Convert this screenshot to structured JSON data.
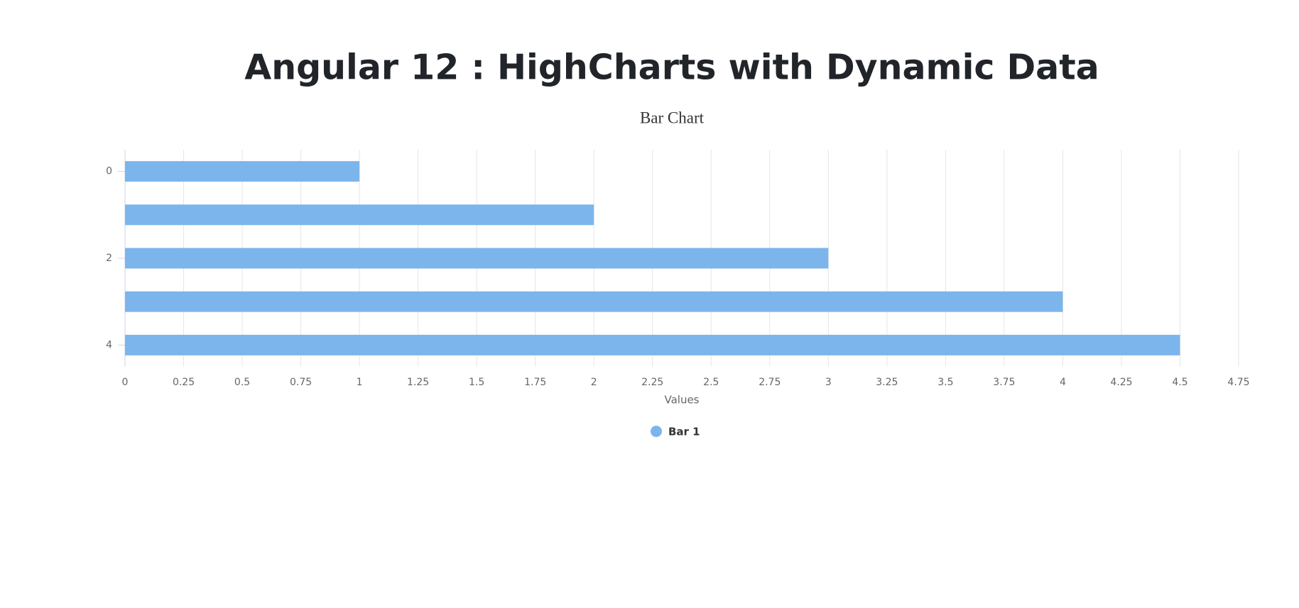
{
  "page_title": "Angular 12 : HighCharts with Dynamic Data",
  "chart_data": {
    "type": "bar",
    "title": "Bar Chart",
    "x_label": "Values",
    "categories": [
      "0",
      null,
      "2",
      null,
      "4"
    ],
    "series": [
      {
        "name": "Bar 1",
        "color": "#7cb5ec",
        "values": [
          1,
          2,
          3,
          4,
          4.5
        ]
      }
    ],
    "xlim": [
      0,
      4.75
    ],
    "xticks": [
      0,
      0.25,
      0.5,
      0.75,
      1,
      1.25,
      1.5,
      1.75,
      2,
      2.25,
      2.5,
      2.75,
      3,
      3.25,
      3.5,
      3.75,
      4,
      4.25,
      4.5,
      4.75
    ],
    "grid": true,
    "legend": "bottom"
  }
}
